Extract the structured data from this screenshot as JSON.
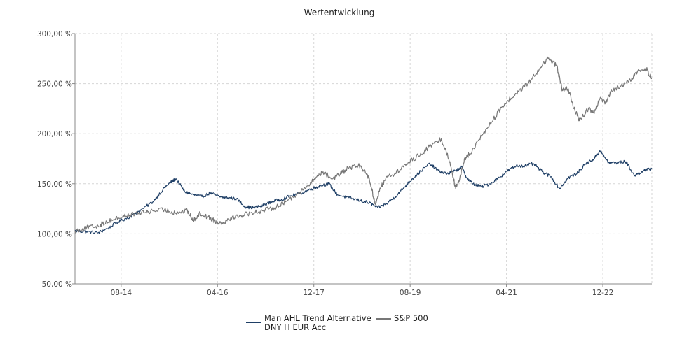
{
  "chart_data": {
    "type": "line",
    "title": "Wertentwicklung",
    "xlabel": "",
    "ylabel": "",
    "ylim": [
      50,
      300
    ],
    "y_ticks": [
      {
        "value": 50,
        "label": "50,00 %"
      },
      {
        "value": 100,
        "label": "100,00 %"
      },
      {
        "value": 150,
        "label": "150,00 %"
      },
      {
        "value": 200,
        "label": "200,00 %"
      },
      {
        "value": 250,
        "label": "250,00 %"
      },
      {
        "value": 300,
        "label": "300,00 %"
      }
    ],
    "x_range": [
      2013.55,
      2023.55
    ],
    "x_ticks": [
      {
        "value": 2014.35,
        "label": "08-14"
      },
      {
        "value": 2016.02,
        "label": "04-16"
      },
      {
        "value": 2017.69,
        "label": "12-17"
      },
      {
        "value": 2019.36,
        "label": "08-19"
      },
      {
        "value": 2021.03,
        "label": "04-21"
      },
      {
        "value": 2022.7,
        "label": "12-22"
      }
    ],
    "grid": true,
    "legend_position": "bottom-center",
    "series": [
      {
        "name": "Man AHL Trend Alternative DNY H EUR Acc",
        "legend_lines": [
          "Man AHL Trend Alternative",
          "DNY H EUR Acc"
        ],
        "color": "#1f3f66",
        "x": [
          2013.55,
          2013.75,
          2013.95,
          2014.1,
          2014.3,
          2014.5,
          2014.7,
          2014.9,
          2015.1,
          2015.2,
          2015.3,
          2015.45,
          2015.6,
          2015.75,
          2015.9,
          2016.05,
          2016.2,
          2016.35,
          2016.5,
          2016.65,
          2016.8,
          2016.95,
          2017.1,
          2017.3,
          2017.5,
          2017.65,
          2017.8,
          2017.95,
          2018.1,
          2018.3,
          2018.5,
          2018.65,
          2018.8,
          2018.95,
          2019.1,
          2019.25,
          2019.4,
          2019.55,
          2019.7,
          2019.85,
          2020.0,
          2020.15,
          2020.25,
          2020.35,
          2020.45,
          2020.6,
          2020.75,
          2020.9,
          2021.05,
          2021.2,
          2021.35,
          2021.5,
          2021.65,
          2021.8,
          2021.95,
          2022.1,
          2022.25,
          2022.4,
          2022.55,
          2022.65,
          2022.8,
          2022.95,
          2023.1,
          2023.25,
          2023.4,
          2023.55
        ],
        "values": [
          103,
          102,
          101,
          105,
          112,
          117,
          124,
          132,
          146,
          151,
          155,
          142,
          139,
          137,
          141,
          137,
          136,
          135,
          127,
          126,
          128,
          132,
          134,
          138,
          141,
          145,
          148,
          150,
          139,
          136,
          133,
          131,
          126,
          130,
          137,
          146,
          155,
          163,
          170,
          163,
          160,
          163,
          167,
          155,
          150,
          147,
          150,
          156,
          163,
          168,
          168,
          170,
          162,
          157,
          145,
          156,
          160,
          170,
          175,
          183,
          171,
          171,
          172,
          158,
          163,
          165
        ]
      },
      {
        "name": "S&P 500",
        "legend_lines": [
          "S&P 500"
        ],
        "color": "#777777",
        "x": [
          2013.55,
          2013.75,
          2013.95,
          2014.1,
          2014.3,
          2014.5,
          2014.7,
          2014.9,
          2015.1,
          2015.3,
          2015.5,
          2015.6,
          2015.7,
          2015.85,
          2016.0,
          2016.1,
          2016.25,
          2016.4,
          2016.6,
          2016.8,
          2017.0,
          2017.2,
          2017.4,
          2017.6,
          2017.75,
          2017.85,
          2018.0,
          2018.15,
          2018.3,
          2018.5,
          2018.65,
          2018.75,
          2018.85,
          2018.95,
          2019.1,
          2019.3,
          2019.5,
          2019.7,
          2019.9,
          2020.05,
          2020.15,
          2020.22,
          2020.3,
          2020.4,
          2020.6,
          2020.8,
          2021.0,
          2021.2,
          2021.4,
          2021.6,
          2021.75,
          2021.9,
          2022.0,
          2022.1,
          2022.2,
          2022.3,
          2022.45,
          2022.55,
          2022.65,
          2022.75,
          2022.85,
          2023.0,
          2023.15,
          2023.3,
          2023.45,
          2023.55
        ],
        "values": [
          103,
          106,
          108,
          112,
          116,
          119,
          121,
          123,
          124,
          121,
          123,
          113,
          120,
          117,
          112,
          111,
          116,
          118,
          121,
          123,
          126,
          132,
          140,
          148,
          158,
          162,
          155,
          160,
          166,
          168,
          156,
          130,
          146,
          157,
          160,
          170,
          178,
          187,
          195,
          172,
          145,
          155,
          175,
          180,
          198,
          214,
          230,
          240,
          250,
          265,
          275,
          268,
          243,
          245,
          225,
          213,
          225,
          220,
          235,
          230,
          243,
          247,
          252,
          262,
          265,
          255
        ]
      }
    ]
  }
}
